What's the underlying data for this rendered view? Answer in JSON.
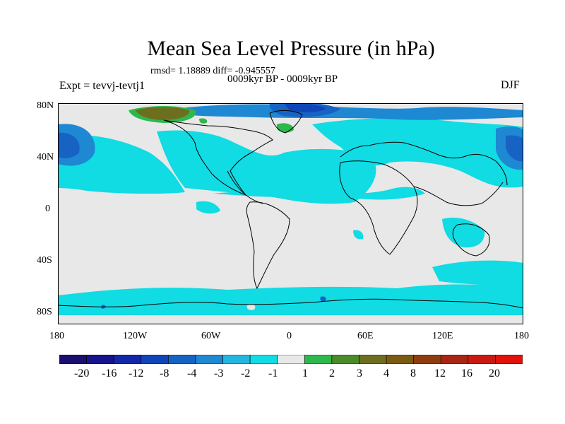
{
  "header": {
    "title": "Mean Sea Level Pressure (in hPa)",
    "stats": "rmsd= 1.18889 diff= -0.945557",
    "period": "0009kyr BP - 0009kyr BP",
    "experiment": "Expt = tevvj-tevtj1",
    "season": "DJF"
  },
  "axes": {
    "lat_ticks": [
      "80N",
      "40N",
      "0",
      "40S",
      "80S"
    ],
    "lon_ticks": [
      "180",
      "120W",
      "60W",
      "0",
      "60E",
      "120E",
      "180"
    ]
  },
  "colorbar": {
    "labels": [
      "-20",
      "-16",
      "-12",
      "-8",
      "-4",
      "-3",
      "-2",
      "-1",
      "1",
      "2",
      "3",
      "4",
      "8",
      "12",
      "16",
      "20"
    ],
    "colors": [
      "#1a0f6e",
      "#17138c",
      "#1328a8",
      "#1045b8",
      "#1763c4",
      "#1e88d2",
      "#22b6e0",
      "#11dbe3",
      "#e8e8e8",
      "#2db84b",
      "#4a8c2a",
      "#6d6e1e",
      "#7b5a12",
      "#8f3d10",
      "#a82513",
      "#c91a12",
      "#e0120c"
    ]
  },
  "map_colors": {
    "neutral": "#e8e8e8",
    "light_blue": "#11dbe3",
    "mid_blue": "#22b6e0",
    "blue": "#1e88d2",
    "dark_blue": "#1763c4",
    "deep_blue": "#1045b8",
    "green": "#2db84b",
    "olive": "#6d6e1e",
    "brown": "#7b5a12"
  }
}
